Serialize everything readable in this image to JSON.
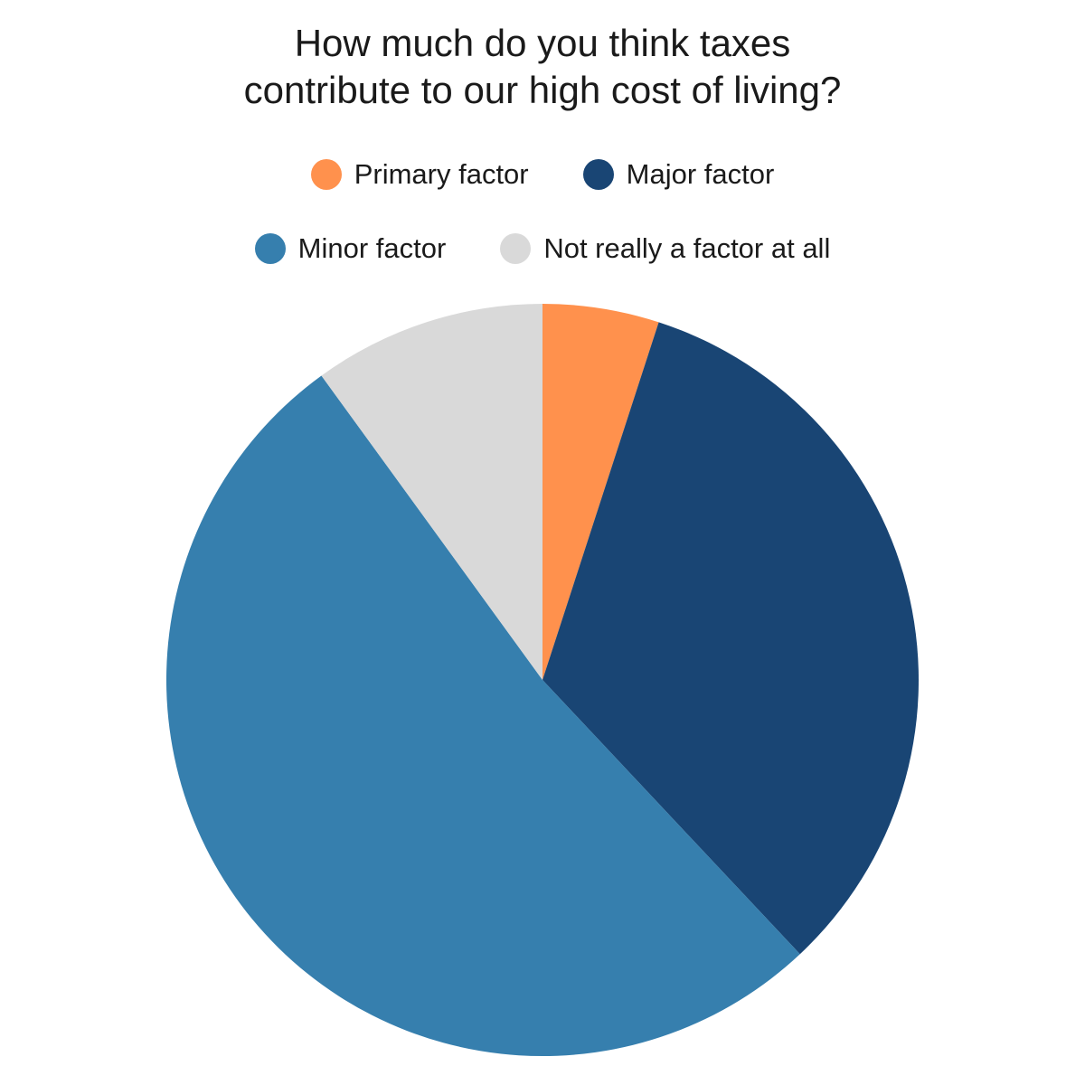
{
  "chart_data": {
    "type": "pie",
    "title_lines": [
      "How much do you think taxes",
      "contribute to our high cost of living?"
    ],
    "legend_placement": "top",
    "slices": [
      {
        "name": "Primary factor",
        "value": 5,
        "color": "#ff914d"
      },
      {
        "name": "Major factor",
        "value": 33,
        "color": "#194574"
      },
      {
        "name": "Minor factor",
        "value": 52,
        "color": "#367fae"
      },
      {
        "name": "Not really a factor at all",
        "value": 10,
        "color": "#d9d9d9"
      }
    ]
  }
}
